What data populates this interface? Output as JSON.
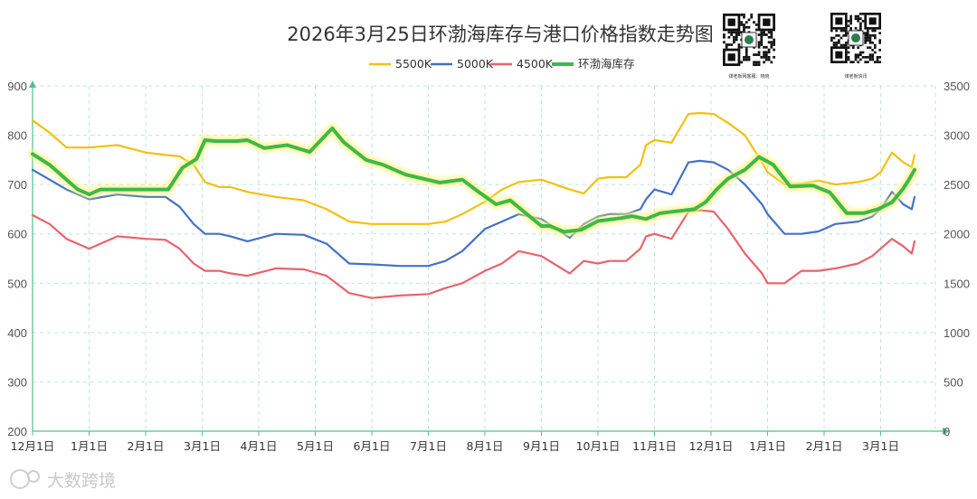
{
  "chart_data": {
    "type": "line",
    "title": "2026年3月25日环渤海库存与港口价格指数走势图",
    "xlabel": "",
    "ylabel_left": "",
    "ylabel_right": "",
    "x_ticks": [
      "12月1日",
      "1月1日",
      "2月1日",
      "3月1日",
      "4月1日",
      "5月1日",
      "6月1日",
      "7月1日",
      "8月1日",
      "9月1日",
      "10月1日",
      "11月1日",
      "12月1日",
      "1月1日",
      "2月1日",
      "3月1日"
    ],
    "y_left": {
      "min": 200,
      "max": 900,
      "ticks": [
        200,
        300,
        400,
        500,
        600,
        700,
        800,
        900
      ]
    },
    "y_right": {
      "min": 0,
      "max": 3500,
      "ticks": [
        0,
        500,
        1000,
        1500,
        2000,
        2500,
        3000,
        3500
      ]
    },
    "grid": true,
    "legend_position": "top-center",
    "x_unit_note": "x = months since 12月1日 (0 = 12月1日, 1 = 1月1日, ...)",
    "series": [
      {
        "name": "5500K",
        "axis": "left",
        "color": "#f2c10f",
        "x": [
          0,
          0.3,
          0.6,
          1.0,
          1.5,
          2.0,
          2.35,
          2.6,
          2.85,
          3.05,
          3.3,
          3.5,
          3.8,
          4.3,
          4.8,
          5.2,
          5.6,
          6.0,
          6.5,
          7.0,
          7.3,
          7.6,
          8.0,
          8.3,
          8.6,
          9.0,
          9.5,
          9.75,
          10.0,
          10.2,
          10.5,
          10.75,
          10.85,
          11.0,
          11.3,
          11.6,
          11.8,
          12.05,
          12.3,
          12.6,
          12.9,
          13.0,
          13.3,
          13.6,
          13.9,
          14.2,
          14.6,
          14.85,
          15.0,
          15.2,
          15.4,
          15.55,
          15.6
        ],
        "values": [
          830,
          805,
          775,
          775,
          780,
          765,
          760,
          757,
          740,
          705,
          695,
          695,
          685,
          675,
          668,
          650,
          625,
          620,
          620,
          620,
          625,
          640,
          665,
          690,
          705,
          710,
          690,
          682,
          712,
          715,
          715,
          740,
          780,
          790,
          785,
          843,
          845,
          843,
          825,
          800,
          745,
          725,
          700,
          702,
          708,
          700,
          705,
          712,
          725,
          765,
          745,
          735,
          760
        ]
      },
      {
        "name": "5000K",
        "axis": "left",
        "color": "#4472c4",
        "x": [
          0,
          0.3,
          0.6,
          1.0,
          1.5,
          2.0,
          2.35,
          2.6,
          2.85,
          3.05,
          3.3,
          3.5,
          3.8,
          4.3,
          4.8,
          5.2,
          5.6,
          6.0,
          6.5,
          7.0,
          7.3,
          7.6,
          8.0,
          8.3,
          8.6,
          9.0,
          9.5,
          9.75,
          10.0,
          10.2,
          10.5,
          10.75,
          10.85,
          11.0,
          11.3,
          11.6,
          11.8,
          12.05,
          12.3,
          12.6,
          12.9,
          13.0,
          13.3,
          13.6,
          13.9,
          14.2,
          14.6,
          14.85,
          15.0,
          15.2,
          15.4,
          15.55,
          15.6
        ],
        "values": [
          730,
          710,
          690,
          670,
          680,
          675,
          675,
          655,
          620,
          600,
          600,
          595,
          585,
          600,
          598,
          580,
          540,
          538,
          535,
          535,
          545,
          565,
          610,
          625,
          640,
          630,
          592,
          620,
          635,
          640,
          640,
          650,
          670,
          690,
          680,
          745,
          748,
          745,
          730,
          700,
          660,
          640,
          600,
          600,
          605,
          620,
          625,
          635,
          650,
          685,
          660,
          650,
          675
        ]
      },
      {
        "name": "4500K",
        "axis": "left",
        "color": "#e8636a",
        "x": [
          0,
          0.3,
          0.6,
          1.0,
          1.5,
          2.0,
          2.35,
          2.6,
          2.85,
          3.05,
          3.3,
          3.5,
          3.8,
          4.3,
          4.8,
          5.2,
          5.6,
          6.0,
          6.5,
          7.0,
          7.3,
          7.6,
          8.0,
          8.3,
          8.6,
          9.0,
          9.5,
          9.75,
          10.0,
          10.2,
          10.5,
          10.75,
          10.85,
          11.0,
          11.3,
          11.6,
          11.8,
          12.05,
          12.3,
          12.6,
          12.9,
          13.0,
          13.3,
          13.6,
          13.9,
          14.2,
          14.6,
          14.85,
          15.0,
          15.2,
          15.4,
          15.55,
          15.6
        ],
        "values": [
          638,
          620,
          590,
          570,
          595,
          590,
          588,
          570,
          540,
          525,
          525,
          520,
          515,
          530,
          528,
          515,
          480,
          470,
          475,
          478,
          490,
          500,
          525,
          540,
          565,
          555,
          520,
          545,
          540,
          545,
          545,
          570,
          595,
          600,
          590,
          645,
          648,
          645,
          610,
          560,
          520,
          500,
          500,
          525,
          525,
          530,
          540,
          555,
          570,
          590,
          575,
          560,
          585
        ]
      },
      {
        "name": "环渤海库存",
        "axis": "right",
        "color": "#3cb94a",
        "x": [
          0,
          0.3,
          0.6,
          0.8,
          1.0,
          1.2,
          1.5,
          2.0,
          2.4,
          2.65,
          2.9,
          3.05,
          3.25,
          3.6,
          3.8,
          4.1,
          4.5,
          4.9,
          5.3,
          5.5,
          5.9,
          6.2,
          6.6,
          6.9,
          7.2,
          7.6,
          7.9,
          8.2,
          8.45,
          8.7,
          9.0,
          9.15,
          9.4,
          9.7,
          10.0,
          10.4,
          10.6,
          10.85,
          11.1,
          11.4,
          11.7,
          11.9,
          12.1,
          12.3,
          12.6,
          12.85,
          13.1,
          13.4,
          13.8,
          14.1,
          14.4,
          14.7,
          14.95,
          15.2,
          15.4,
          15.5,
          15.6
        ],
        "values": [
          2810,
          2700,
          2550,
          2450,
          2400,
          2450,
          2450,
          2450,
          2450,
          2670,
          2760,
          2950,
          2940,
          2940,
          2950,
          2870,
          2900,
          2830,
          3070,
          2930,
          2750,
          2700,
          2600,
          2560,
          2520,
          2550,
          2420,
          2300,
          2340,
          2220,
          2080,
          2080,
          2020,
          2040,
          2130,
          2160,
          2180,
          2150,
          2210,
          2230,
          2250,
          2320,
          2450,
          2560,
          2650,
          2780,
          2700,
          2480,
          2490,
          2420,
          2210,
          2210,
          2250,
          2320,
          2460,
          2550,
          2650
        ]
      }
    ]
  },
  "qr_left": {
    "caption": "煤老板网客服：晓晓"
  },
  "qr_right": {
    "caption": "煤老板快讯"
  },
  "watermark": {
    "text": "大数跨境"
  }
}
